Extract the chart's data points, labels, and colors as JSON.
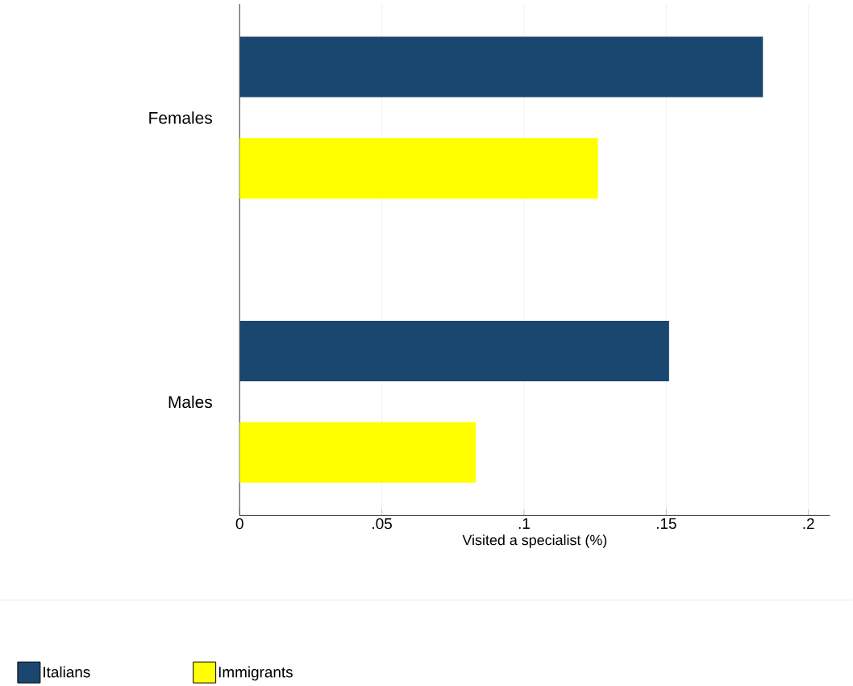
{
  "chart_data": {
    "type": "bar",
    "orientation": "horizontal",
    "xlabel": "Visited a specialist (%)",
    "categories": [
      "Females",
      "Males"
    ],
    "series": [
      {
        "name": "Italians",
        "color": "#1a476f",
        "values": [
          0.184,
          0.151
        ]
      },
      {
        "name": "Immigrants",
        "color": "#ffff00",
        "values": [
          0.126,
          0.083
        ]
      }
    ],
    "xlim": [
      0,
      0.2076
    ],
    "xticks": [
      0,
      {
        "value": 0.05,
        "label": ".05"
      },
      {
        "value": 0.1,
        "label": ".1"
      },
      {
        "value": 0.15,
        "label": ".15"
      },
      {
        "value": 0.2,
        "label": ".2"
      }
    ],
    "grid": "x",
    "legend": "bottom"
  }
}
